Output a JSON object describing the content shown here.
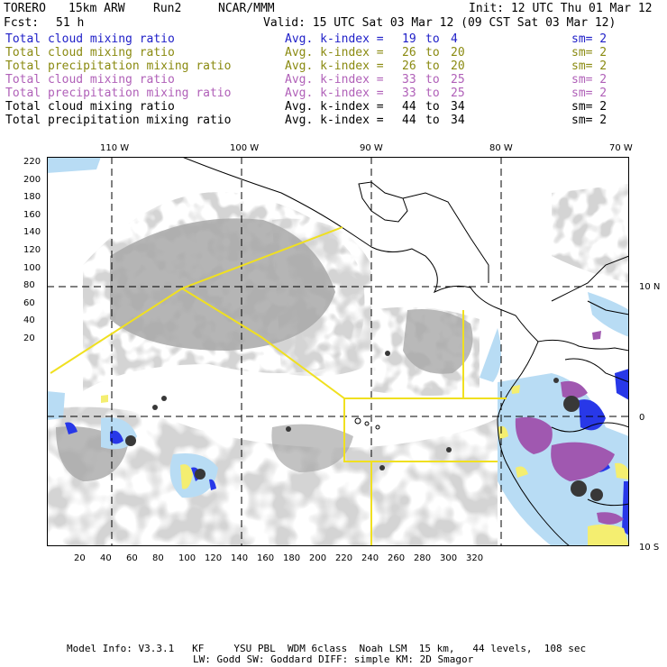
{
  "header": {
    "model": "TORERO",
    "resolution": "15km ARW",
    "run": "Run2",
    "org": "NCAR/MMM",
    "init": "Init: 12 UTC Thu 01 Mar 12",
    "fcst_label": "Fcst:",
    "fcst_value": "51 h",
    "valid": "Valid: 15 UTC Sat 03 Mar 12 (09 CST Sat 03 Mar 12)"
  },
  "legend": [
    {
      "field": "Total cloud mixing ratio",
      "index": "Avg. k-index =",
      "from": "19",
      "to_word": "to",
      "to": "4",
      "sm": "sm= 2",
      "color": "#2020c8"
    },
    {
      "field": "Total cloud mixing ratio",
      "index": "Avg. k-index =",
      "from": "26",
      "to_word": "to",
      "to": "20",
      "sm": "sm= 2",
      "color": "#8a8a10"
    },
    {
      "field": "Total precipitation mixing ratio",
      "index": "Avg. k-index =",
      "from": "26",
      "to_word": "to",
      "to": "20",
      "sm": "sm= 2",
      "color": "#8a8a10"
    },
    {
      "field": "Total cloud mixing ratio",
      "index": "Avg. k-index =",
      "from": "33",
      "to_word": "to",
      "to": "25",
      "sm": "sm= 2",
      "color": "#b060b8"
    },
    {
      "field": "Total precipitation mixing ratio",
      "index": "Avg. k-index =",
      "from": "33",
      "to_word": "to",
      "to": "25",
      "sm": "sm= 2",
      "color": "#b060b8"
    },
    {
      "field": "Total cloud mixing ratio",
      "index": "Avg. k-index =",
      "from": "44",
      "to_word": "to",
      "to": "34",
      "sm": "sm= 2",
      "color": "#000000"
    },
    {
      "field": "Total precipitation mixing ratio",
      "index": "Avg. k-index =",
      "from": "44",
      "to_word": "to",
      "to": "34",
      "sm": "sm= 2",
      "color": "#000000"
    }
  ],
  "axes": {
    "top_labels": [
      "110 W",
      "100 W",
      "90 W",
      "80 W",
      "70 W"
    ],
    "right_labels": [
      "10 N",
      "0",
      "10 S"
    ],
    "x_ticks": [
      "20",
      "40",
      "60",
      "80",
      "100",
      "120",
      "140",
      "160",
      "180",
      "200",
      "220",
      "240",
      "260",
      "280",
      "300",
      "320"
    ],
    "y_ticks": [
      "220",
      "200",
      "180",
      "160",
      "140",
      "120",
      "100",
      "80",
      "60",
      "40",
      "20"
    ]
  },
  "footer": {
    "line1": "Model Info: V3.3.1   KF     YSU PBL  WDM 6class  Noah LSM  15 km,   44 levels,  108 sec",
    "line2": "LW: Godd SW: Goddard DIFF: simple KM: 2D Smagor"
  },
  "colors": {
    "cloud_gray": "#a8a8a8",
    "light_blue": "#b8dcf4",
    "blue": "#2838e8",
    "yellow": "#f4ee70",
    "purple": "#a058b0",
    "dark": "#383838",
    "box_line": "#f0e020"
  }
}
